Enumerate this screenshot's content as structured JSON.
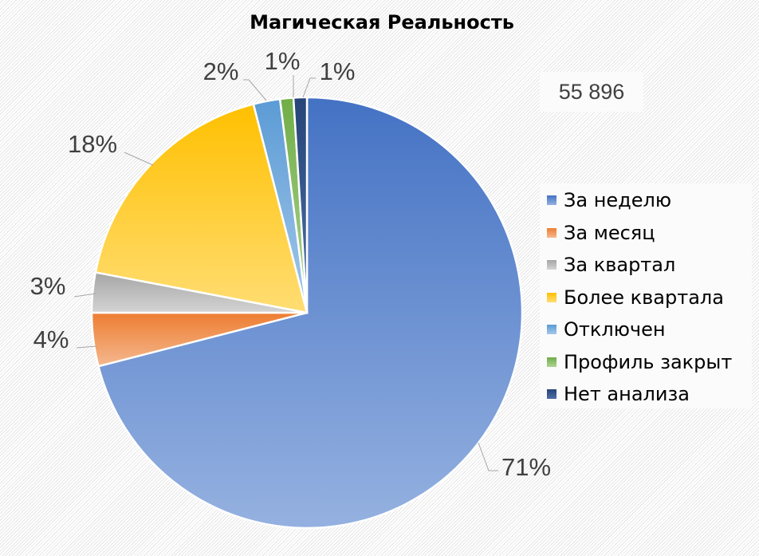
{
  "chart_data": {
    "type": "pie",
    "title": "Магическая Реальность",
    "total_label": "55 896",
    "categories": [
      "За неделю",
      "За месяц",
      "За квартал",
      "Более квартала",
      "Отключен",
      "Профиль закрыт",
      "Нет анализа"
    ],
    "values": [
      71,
      4,
      3,
      18,
      2,
      1,
      1
    ],
    "data_labels": [
      "71%",
      "4%",
      "3%",
      "18%",
      "2%",
      "1%",
      "1%"
    ],
    "start_angle": "12 o'clock, clockwise",
    "legend_position": "right",
    "colors": [
      [
        "#4472c4",
        "#95b1e0"
      ],
      [
        "#ed7d31",
        "#f5b88f"
      ],
      [
        "#a5a5a5",
        "#d4d4d4"
      ],
      [
        "#ffc000",
        "#ffdd73"
      ],
      [
        "#5b9bd5",
        "#a4c8ea"
      ],
      [
        "#70ad47",
        "#aed494"
      ],
      [
        "#264478",
        "#4f6fa6"
      ]
    ]
  }
}
